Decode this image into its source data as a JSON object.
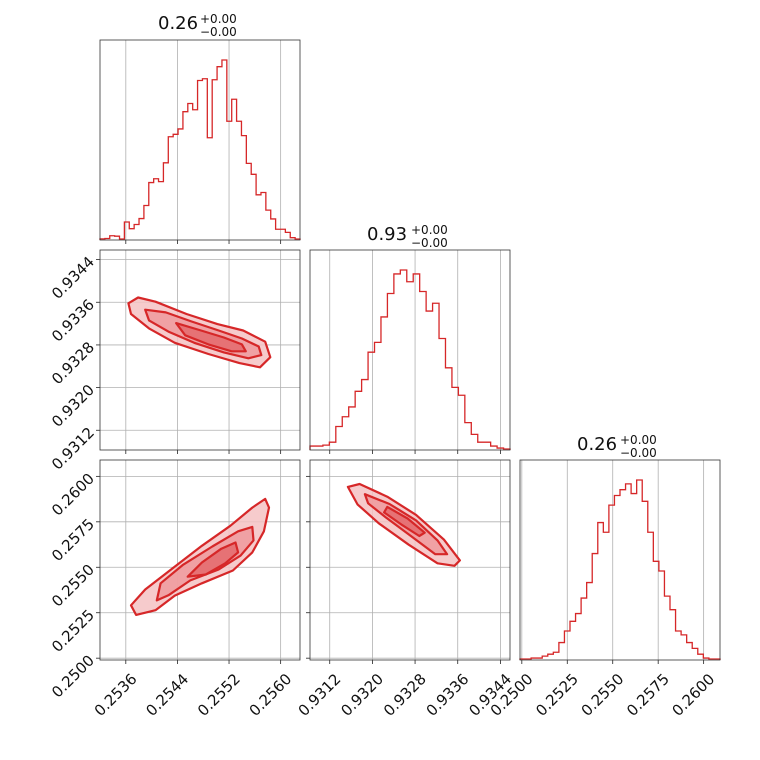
{
  "chart_data": {
    "type": "corner",
    "color": "#d62728",
    "fill_colors": [
      "#f4c2c3",
      "#ee9a9c",
      "#e46a6d"
    ],
    "scatter_color": "#f7c6c7",
    "grid": true,
    "parameters": [
      {
        "id": "p0",
        "title_main": "0.26",
        "title_plus": "+0.00",
        "title_minus": "−0.00",
        "range": [
          0.2532,
          0.2563
        ],
        "ticks": [
          0.2536,
          0.2544,
          0.2552,
          0.256
        ],
        "tick_labels": [
          "0.2536",
          "0.2544",
          "0.2552",
          "0.2560"
        ],
        "hist": [
          0.006,
          0.008,
          0.022,
          0.02,
          0.005,
          0.094,
          0.059,
          0.081,
          0.112,
          0.18,
          0.3,
          0.32,
          0.305,
          0.403,
          0.539,
          0.552,
          0.58,
          0.67,
          0.713,
          0.68,
          0.833,
          0.842,
          0.534,
          0.837,
          0.905,
          0.94,
          0.62,
          0.735,
          0.62,
          0.545,
          0.4,
          0.343,
          0.236,
          0.248,
          0.156,
          0.11,
          0.056,
          0.056,
          0.04,
          0.012,
          0.005
        ]
      },
      {
        "id": "p1",
        "title_main": "0.93",
        "title_plus": "+0.00",
        "title_minus": "−0.00",
        "range": [
          0.93083,
          0.93458
        ],
        "ticks": [
          0.9312,
          0.932,
          0.9328,
          0.9336,
          0.9344
        ],
        "tick_labels": [
          "0.9312",
          "0.9320",
          "0.9328",
          "0.9336",
          "0.9344"
        ],
        "hist": [
          0.02,
          0.02,
          0.025,
          0.04,
          0.12,
          0.17,
          0.22,
          0.3,
          0.36,
          0.5,
          0.55,
          0.68,
          0.8,
          0.9,
          0.92,
          0.86,
          0.9,
          0.81,
          0.71,
          0.75,
          0.57,
          0.42,
          0.32,
          0.28,
          0.14,
          0.08,
          0.04,
          0.04,
          0.02,
          0.01,
          0.005
        ]
      },
      {
        "id": "p2",
        "title_main": "0.26",
        "title_plus": "+0.00",
        "title_minus": "−0.00",
        "range": [
          0.2499,
          0.2609
        ],
        "ticks": [
          0.25,
          0.2525,
          0.255,
          0.2575,
          0.26
        ],
        "tick_labels": [
          "0.2500",
          "0.2525",
          "0.2550",
          "0.2575",
          "0.2600"
        ],
        "hist": [
          0.005,
          0.005,
          0.01,
          0.01,
          0.02,
          0.03,
          0.04,
          0.09,
          0.15,
          0.2,
          0.24,
          0.32,
          0.4,
          0.55,
          0.71,
          0.66,
          0.8,
          0.85,
          0.88,
          0.91,
          0.86,
          0.93,
          0.82,
          0.66,
          0.51,
          0.46,
          0.33,
          0.26,
          0.15,
          0.13,
          0.09,
          0.06,
          0.03,
          0.01,
          0.005,
          0.005
        ]
      }
    ],
    "pairs": [
      {
        "id": "p1-vs-p0",
        "x_param": 0,
        "y_param": 1,
        "contours": [
          [
            [
              0.25364,
              0.93358
            ],
            [
              0.25379,
              0.93369
            ],
            [
              0.25406,
              0.93361
            ],
            [
              0.25454,
              0.93338
            ],
            [
              0.25502,
              0.93319
            ],
            [
              0.25542,
              0.93307
            ],
            [
              0.25576,
              0.93286
            ],
            [
              0.25584,
              0.93257
            ],
            [
              0.25568,
              0.93238
            ],
            [
              0.25536,
              0.93246
            ],
            [
              0.25488,
              0.93263
            ],
            [
              0.25436,
              0.93284
            ],
            [
              0.25396,
              0.93311
            ],
            [
              0.25368,
              0.93338
            ]
          ],
          [
            [
              0.2539,
              0.93346
            ],
            [
              0.25422,
              0.93341
            ],
            [
              0.25462,
              0.93324
            ],
            [
              0.25504,
              0.93307
            ],
            [
              0.2554,
              0.93292
            ],
            [
              0.25566,
              0.93277
            ],
            [
              0.2557,
              0.93261
            ],
            [
              0.2555,
              0.93255
            ],
            [
              0.25512,
              0.93266
            ],
            [
              0.25466,
              0.93284
            ],
            [
              0.25426,
              0.93305
            ],
            [
              0.25396,
              0.93326
            ]
          ],
          [
            [
              0.25438,
              0.93321
            ],
            [
              0.25474,
              0.93308
            ],
            [
              0.25512,
              0.93294
            ],
            [
              0.2554,
              0.93281
            ],
            [
              0.25546,
              0.93268
            ],
            [
              0.25524,
              0.93268
            ],
            [
              0.25488,
              0.93281
            ],
            [
              0.25452,
              0.93298
            ]
          ]
        ],
        "scatter_box": {
          "x": [
            0.2536,
            0.2562
          ],
          "y": [
            0.93104,
            0.93444
          ],
          "slope": -0.55
        }
      },
      {
        "id": "p2-vs-p0",
        "x_param": 0,
        "y_param": 2,
        "contours": [
          [
            [
              0.25376,
              0.25238
            ],
            [
              0.25368,
              0.25291
            ],
            [
              0.2539,
              0.25378
            ],
            [
              0.25434,
              0.25498
            ],
            [
              0.25478,
              0.25618
            ],
            [
              0.25522,
              0.25728
            ],
            [
              0.25556,
              0.25828
            ],
            [
              0.25576,
              0.25876
            ],
            [
              0.25582,
              0.25828
            ],
            [
              0.25574,
              0.25698
            ],
            [
              0.25556,
              0.25582
            ],
            [
              0.25526,
              0.25482
            ],
            [
              0.25478,
              0.25412
            ],
            [
              0.25436,
              0.25344
            ],
            [
              0.25406,
              0.25264
            ]
          ],
          [
            [
              0.25408,
              0.25318
            ],
            [
              0.25414,
              0.25412
            ],
            [
              0.25448,
              0.25512
            ],
            [
              0.25494,
              0.25614
            ],
            [
              0.25534,
              0.25698
            ],
            [
              0.25556,
              0.25722
            ],
            [
              0.25558,
              0.25648
            ],
            [
              0.25538,
              0.25564
            ],
            [
              0.25504,
              0.25488
            ],
            [
              0.2546,
              0.25428
            ],
            [
              0.25426,
              0.25346
            ]
          ],
          [
            [
              0.25456,
              0.25448
            ],
            [
              0.25478,
              0.25526
            ],
            [
              0.25508,
              0.25602
            ],
            [
              0.2553,
              0.25636
            ],
            [
              0.25534,
              0.25582
            ],
            [
              0.25514,
              0.25522
            ],
            [
              0.25484,
              0.2546
            ]
          ]
        ],
        "scatter_box": {
          "x": [
            0.2534,
            0.2562
          ],
          "y": [
            0.2517,
            0.2605
          ],
          "slope": 0.65
        }
      },
      {
        "id": "p2-vs-p1",
        "x_param": 1,
        "y_param": 2,
        "contours": [
          [
            [
              0.93154,
              0.25942
            ],
            [
              0.93176,
              0.25958
            ],
            [
              0.93228,
              0.25888
            ],
            [
              0.93282,
              0.25788
            ],
            [
              0.93334,
              0.25652
            ],
            [
              0.93364,
              0.25538
            ],
            [
              0.93354,
              0.25508
            ],
            [
              0.93322,
              0.25522
            ],
            [
              0.93268,
              0.25624
            ],
            [
              0.93212,
              0.25742
            ],
            [
              0.93172,
              0.25846
            ]
          ],
          [
            [
              0.93186,
              0.25902
            ],
            [
              0.93232,
              0.25848
            ],
            [
              0.93282,
              0.25758
            ],
            [
              0.93322,
              0.25648
            ],
            [
              0.9334,
              0.25572
            ],
            [
              0.93318,
              0.25572
            ],
            [
              0.93276,
              0.25664
            ],
            [
              0.93226,
              0.25772
            ],
            [
              0.93192,
              0.25852
            ]
          ],
          [
            [
              0.93228,
              0.25832
            ],
            [
              0.93266,
              0.25768
            ],
            [
              0.93298,
              0.2569
            ],
            [
              0.93288,
              0.25672
            ],
            [
              0.93254,
              0.25736
            ],
            [
              0.93222,
              0.25802
            ]
          ]
        ],
        "scatter_box": {
          "x": [
            0.9313,
            0.9344
          ],
          "y": [
            0.2524,
            0.2598
          ],
          "slope": -0.98
        }
      }
    ]
  }
}
